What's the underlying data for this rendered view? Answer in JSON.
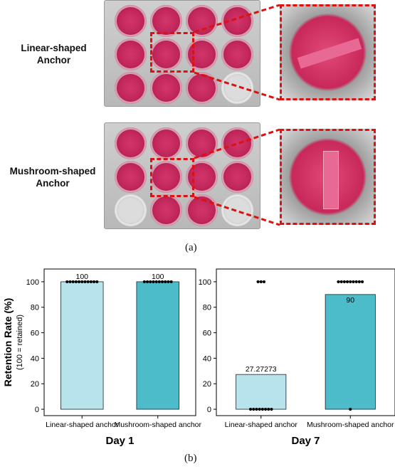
{
  "panel_a": {
    "caption": "(a)",
    "row1_label_line1": "Linear-shaped",
    "row1_label_line2": "Anchor",
    "row2_label_line1": "Mushroom-shaped",
    "row2_label_line2": "Anchor"
  },
  "panel_b": {
    "caption": "(b)"
  },
  "colors": {
    "linear": "#b7e4ec",
    "mushroom": "#4cbccb",
    "highlight": "#dd1111",
    "media": "#d2356a"
  },
  "chart_data": [
    {
      "type": "bar",
      "title": "Day 1",
      "ylabel": "Retention Rate (%)",
      "ylabel_sub": "(100 = retained)",
      "categories": [
        "Linear-shaped anchor",
        "Mushroom-shaped anchor"
      ],
      "values": [
        100,
        100
      ],
      "value_labels": [
        "100",
        "100"
      ],
      "ylim": [
        -5,
        110
      ],
      "yticks": [
        0,
        20,
        40,
        60,
        80,
        100
      ],
      "points": [
        [
          100,
          100,
          100,
          100,
          100,
          100,
          100,
          100,
          100,
          100,
          100
        ],
        [
          100,
          100,
          100,
          100,
          100,
          100,
          100,
          100,
          100,
          100
        ]
      ]
    },
    {
      "type": "bar",
      "title": "Day 7",
      "categories": [
        "Linear-shaped anchor",
        "Mushroom-shaped anchor"
      ],
      "values": [
        27.27273,
        90
      ],
      "value_labels": [
        "27.27273",
        "90"
      ],
      "ylim": [
        -5,
        110
      ],
      "yticks": [
        0,
        20,
        40,
        60,
        80,
        100
      ],
      "points": [
        [
          100,
          100,
          100,
          0,
          0,
          0,
          0,
          0,
          0,
          0,
          0
        ],
        [
          100,
          100,
          100,
          100,
          100,
          100,
          100,
          100,
          100,
          0
        ]
      ]
    }
  ]
}
